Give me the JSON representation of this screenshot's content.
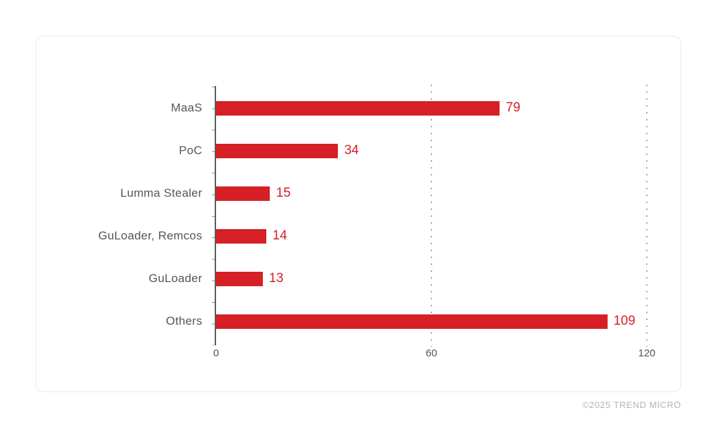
{
  "chart_data": {
    "type": "bar",
    "orientation": "horizontal",
    "title": "",
    "xlabel": "",
    "ylabel": "",
    "categories": [
      "MaaS",
      "PoC",
      "Lumma Stealer",
      "GuLoader, Remcos",
      "GuLoader",
      "Others"
    ],
    "values": [
      79,
      34,
      15,
      14,
      13,
      109
    ],
    "xlim": [
      0,
      120
    ],
    "x_ticks": [
      "0",
      "60",
      "120"
    ],
    "gridlines_at": [
      60,
      120
    ],
    "grid_style": "dotted-vertical",
    "legend": "none",
    "bar_color": "#D71F26",
    "value_label_color": "#D71F26",
    "axis_color": "#58595B",
    "label_color": "#54555A",
    "grid_color": "#A4A5A8"
  },
  "footer": {
    "copyright": "©2025 TREND MICRO"
  }
}
